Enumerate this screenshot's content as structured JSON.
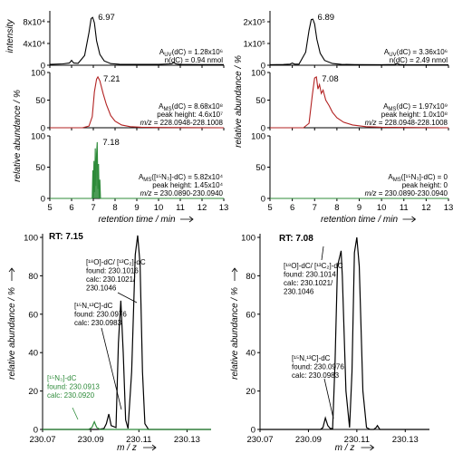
{
  "chart_data": [
    {
      "type": "line",
      "id": "tl-uv",
      "ylabel": "intensity",
      "xlim": [
        5,
        13
      ],
      "ylim": [
        0,
        100000
      ],
      "yticks": [
        {
          "v": 0,
          "t": "0"
        },
        {
          "v": 40000,
          "t": "4x10⁴"
        },
        {
          "v": 80000,
          "t": "8x10⁴"
        }
      ],
      "color": "#000000",
      "peak_label": "6.97",
      "annotations": [
        "A_UV(dC) = 1.28x10⁶",
        "n(dC) = 0.94 nmol"
      ],
      "series": [
        {
          "x": [
            5,
            5.6,
            5.9,
            6.0,
            6.1,
            6.3,
            6.6,
            6.8,
            6.9,
            6.97,
            7.05,
            7.15,
            7.3,
            7.5,
            7.8,
            8.2,
            8.6,
            9,
            10,
            10.6,
            10.7,
            10.8,
            11,
            12,
            13
          ],
          "y": [
            1500,
            2500,
            4000,
            9000,
            4000,
            3500,
            18000,
            60000,
            86000,
            88000,
            78000,
            45000,
            20000,
            8000,
            3000,
            1800,
            1500,
            1500,
            1500,
            2500,
            5000,
            2500,
            1500,
            1200,
            1200
          ]
        }
      ]
    },
    {
      "type": "line",
      "id": "tl-ms",
      "ylabel": "",
      "xlim": [
        5,
        13
      ],
      "ylim": [
        0,
        100
      ],
      "yticks": [
        {
          "v": 0,
          "t": "0"
        },
        {
          "v": 50,
          "t": "50"
        },
        {
          "v": 100,
          "t": "100"
        }
      ],
      "color": "#b22222",
      "peak_label": "7.21",
      "annotations": [
        "A_MS(dC) = 8.68x10⁸",
        "peak height: 4.6x10⁷",
        "m/z = 228.0948-228.1008"
      ],
      "series": [
        {
          "x": [
            5,
            6.5,
            6.8,
            6.95,
            7.05,
            7.15,
            7.21,
            7.3,
            7.45,
            7.6,
            7.8,
            8.0,
            8.3,
            8.7,
            9.2,
            10,
            13
          ],
          "y": [
            0,
            0,
            3,
            20,
            65,
            88,
            92,
            85,
            62,
            42,
            22,
            12,
            5,
            2,
            1,
            0.5,
            0
          ]
        }
      ]
    },
    {
      "type": "line",
      "id": "bl-ms",
      "ylabel": "",
      "xlim": [
        5,
        13
      ],
      "ylim": [
        0,
        100
      ],
      "yticks": [
        {
          "v": 0,
          "t": "0"
        },
        {
          "v": 50,
          "t": "50"
        },
        {
          "v": 100,
          "t": "100"
        }
      ],
      "color": "#2e8b3a",
      "peak_label": "7.18",
      "annotations": [
        "A_MS([¹⁵N₃]-dC) = 5.82x10⁴",
        "peak height: 1.45x10⁴",
        "m/z = 230.0890-230.0940"
      ],
      "series": [
        {
          "x": [
            5,
            6.95,
            6.98,
            7.0,
            7.03,
            7.06,
            7.09,
            7.12,
            7.15,
            7.18,
            7.21,
            7.24,
            7.27,
            7.3,
            7.33,
            13
          ],
          "y": [
            0,
            0,
            45,
            0,
            60,
            10,
            80,
            20,
            72,
            90,
            15,
            55,
            0,
            30,
            0,
            0
          ]
        }
      ]
    },
    {
      "type": "line",
      "id": "tr-uv",
      "ylabel": "",
      "xlim": [
        5,
        13
      ],
      "ylim": [
        0,
        250000
      ],
      "yticks": [
        {
          "v": 0,
          "t": "0"
        },
        {
          "v": 100000,
          "t": "1x10⁵"
        },
        {
          "v": 200000,
          "t": "2x10⁵"
        }
      ],
      "color": "#000000",
      "peak_label": "6.89",
      "annotations": [
        "A_UV(dC) = 3.36x10⁶",
        "n(dC) = 2.49 nmol"
      ],
      "series": [
        {
          "x": [
            5,
            5.6,
            5.9,
            6.0,
            6.1,
            6.3,
            6.6,
            6.75,
            6.85,
            6.92,
            7.0,
            7.1,
            7.25,
            7.45,
            7.8,
            8.2,
            8.8,
            10,
            10.6,
            10.7,
            10.8,
            11,
            12,
            13
          ],
          "y": [
            2500,
            3500,
            5000,
            10000,
            5000,
            5000,
            60000,
            160000,
            210000,
            212000,
            190000,
            120000,
            55000,
            22000,
            8000,
            4000,
            3000,
            2500,
            3500,
            8000,
            3500,
            2500,
            2000,
            2000
          ]
        }
      ]
    },
    {
      "type": "line",
      "id": "mr-ms",
      "ylabel": "relative abundance / %",
      "xlim": [
        5,
        13
      ],
      "ylim": [
        0,
        100
      ],
      "yticks": [
        {
          "v": 0,
          "t": "0"
        },
        {
          "v": 50,
          "t": "50"
        },
        {
          "v": 100,
          "t": "100"
        }
      ],
      "color": "#b22222",
      "peak_label": "7.08",
      "annotations": [
        "A_MS(dC) = 1.97x10⁹",
        "peak height: 1.0x10⁸",
        "m/z = 228.0948-228.1008"
      ],
      "series": [
        {
          "x": [
            5,
            6.5,
            6.75,
            6.9,
            7.0,
            7.08,
            7.15,
            7.22,
            7.3,
            7.38,
            7.5,
            7.65,
            7.8,
            8.0,
            8.3,
            8.7,
            9.3,
            10,
            13
          ],
          "y": [
            0,
            0,
            8,
            60,
            90,
            92,
            70,
            78,
            62,
            68,
            50,
            40,
            28,
            18,
            10,
            5,
            2,
            1,
            0
          ]
        }
      ]
    },
    {
      "type": "line",
      "id": "br-ms",
      "ylabel": "",
      "xlim": [
        5,
        13
      ],
      "ylim": [
        0,
        100
      ],
      "yticks": [
        {
          "v": 0,
          "t": "0"
        },
        {
          "v": 50,
          "t": "50"
        },
        {
          "v": 100,
          "t": "100"
        }
      ],
      "color": "#2e8b3a",
      "peak_label": "",
      "annotations": [
        "A_MS([¹⁵N₃]-dC) = 0",
        "peak height: 0",
        "m/z = 230.0890-230.0940"
      ],
      "series": [
        {
          "x": [
            5,
            13
          ],
          "y": [
            0,
            0
          ]
        }
      ]
    },
    {
      "type": "line",
      "id": "ms-left",
      "title": "RT: 7.15",
      "xlabel": "m / z",
      "ylabel": "relative abundance / %",
      "xlim": [
        230.07,
        230.14
      ],
      "ylim": [
        0,
        100
      ],
      "xticks": [
        230.07,
        230.09,
        230.11,
        230.13
      ],
      "yticks": [
        0,
        20,
        40,
        60,
        80,
        100
      ],
      "series": [
        {
          "color": "#000000",
          "x": [
            230.07,
            230.093,
            230.0955,
            230.0965,
            230.0975,
            230.0985,
            230.1005,
            230.1015,
            230.1025,
            230.1035,
            230.1045,
            230.1055,
            230.107,
            230.1085,
            230.1095,
            230.1105,
            230.1115,
            230.1125,
            230.114,
            230.14
          ],
          "y": [
            0,
            0,
            0.5,
            3,
            8,
            2,
            1,
            45,
            67,
            40,
            5,
            0.5,
            30,
            91,
            101,
            86,
            30,
            3,
            0,
            0
          ]
        },
        {
          "color": "#2e8b3a",
          "x": [
            230.07,
            230.089,
            230.0905,
            230.0915,
            230.0925,
            230.094,
            230.14
          ],
          "y": [
            0,
            0,
            1,
            4,
            1,
            0,
            0
          ]
        }
      ],
      "annotations": [
        {
          "lines": [
            "[¹⁸O]-dC/ [¹³C₂]-dC",
            "found: 230.1016",
            "calc: 230.1021/",
            "230.1046"
          ],
          "color": "#000000"
        },
        {
          "lines": [
            "[¹⁵N,¹³C]-dC",
            "found: 230.0976",
            "calc: 230.0983"
          ],
          "color": "#000000"
        },
        {
          "lines": [
            "[¹⁵N₃]-dC",
            "found: 230.0913",
            "calc: 230.0920"
          ],
          "color": "#2e8b3a"
        }
      ]
    },
    {
      "type": "line",
      "id": "ms-right",
      "title": "RT: 7.08",
      "xlabel": "m / z",
      "ylabel": "relative abundance / %",
      "xlim": [
        230.07,
        230.14
      ],
      "ylim": [
        0,
        100
      ],
      "xticks": [
        230.07,
        230.09,
        230.11,
        230.13
      ],
      "yticks": [
        0,
        20,
        40,
        60,
        80,
        100
      ],
      "series": [
        {
          "color": "#000000",
          "x": [
            230.07,
            230.095,
            230.096,
            230.097,
            230.098,
            230.099,
            230.1,
            230.101,
            230.102,
            230.1035,
            230.104,
            230.1055,
            230.107,
            230.108,
            230.109,
            230.11,
            230.111,
            230.1125,
            230.114,
            230.1155,
            230.117,
            230.118,
            230.1185,
            230.119,
            230.1195,
            230.14
          ],
          "y": [
            0,
            0,
            1,
            6,
            2,
            0.5,
            0.5,
            35,
            85,
            93,
            80,
            20,
            1,
            30,
            92,
            100,
            85,
            20,
            1,
            0,
            0,
            1,
            2,
            1,
            0,
            0
          ]
        }
      ],
      "annotations": [
        {
          "lines": [
            "[¹⁸O]-dC/ [¹³C₂]-dC",
            "found: 230.1014",
            "calc: 230.1021/",
            "230.1046"
          ],
          "color": "#000000"
        },
        {
          "lines": [
            "[¹⁵N,¹³C]-dC",
            "found: 230.0976",
            "calc: 230.0983"
          ],
          "color": "#000000"
        }
      ]
    }
  ],
  "shared": {
    "chrom_xticks": [
      5,
      6,
      7,
      8,
      9,
      10,
      11,
      12,
      13
    ],
    "chrom_xlabel": "retention time / min",
    "left_uv_ylabel": "intensity",
    "left_ms_ylabel": "relative abundance / %"
  }
}
